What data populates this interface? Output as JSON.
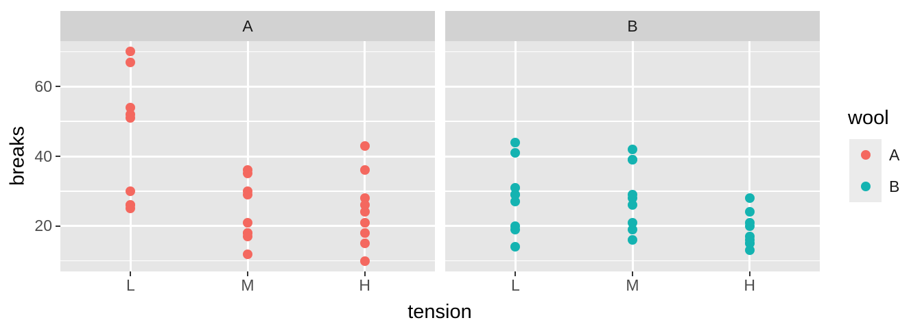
{
  "figure": {
    "background": "#ffffff",
    "panel_bg": "#e6e6e6",
    "strip_bg": "#d2d2d2",
    "grid_color": "#ffffff",
    "tick_mark_color": "#333333",
    "axis_text_color": "#4d4d4d",
    "title_color": "#000000",
    "legend_key_bg": "#ebebeb"
  },
  "chart_data": {
    "type": "scatter",
    "title": "",
    "xlabel": "tension",
    "ylabel": "breaks",
    "facet_variable": "wool",
    "legend_title": "wool",
    "legend_position": "right",
    "grid": true,
    "x_categories": [
      "L",
      "M",
      "H"
    ],
    "y_ticks": [
      60,
      40,
      20
    ],
    "y_minor_gridlines": [
      10,
      30,
      50,
      70
    ],
    "y_major_gridlines": [
      20,
      40,
      60
    ],
    "ylim": [
      7,
      73
    ],
    "point_colors": {
      "A": "#f4685f",
      "B": "#14b3b1"
    },
    "facets": [
      {
        "label": "A",
        "color": "#f4685f",
        "points": {
          "L": [
            26,
            30,
            54,
            25,
            70,
            52,
            51,
            26,
            67
          ],
          "M": [
            18,
            21,
            29,
            17,
            12,
            18,
            35,
            30,
            36
          ],
          "H": [
            36,
            21,
            24,
            18,
            10,
            43,
            28,
            15,
            26
          ]
        }
      },
      {
        "label": "B",
        "color": "#14b3b1",
        "points": {
          "L": [
            27,
            14,
            29,
            19,
            29,
            31,
            41,
            20,
            44
          ],
          "M": [
            42,
            26,
            19,
            16,
            39,
            28,
            21,
            39,
            29
          ],
          "H": [
            20,
            21,
            24,
            17,
            13,
            15,
            15,
            16,
            28
          ]
        }
      }
    ],
    "legend": [
      {
        "label": "A",
        "color": "#f4685f"
      },
      {
        "label": "B",
        "color": "#14b3b1"
      }
    ]
  }
}
